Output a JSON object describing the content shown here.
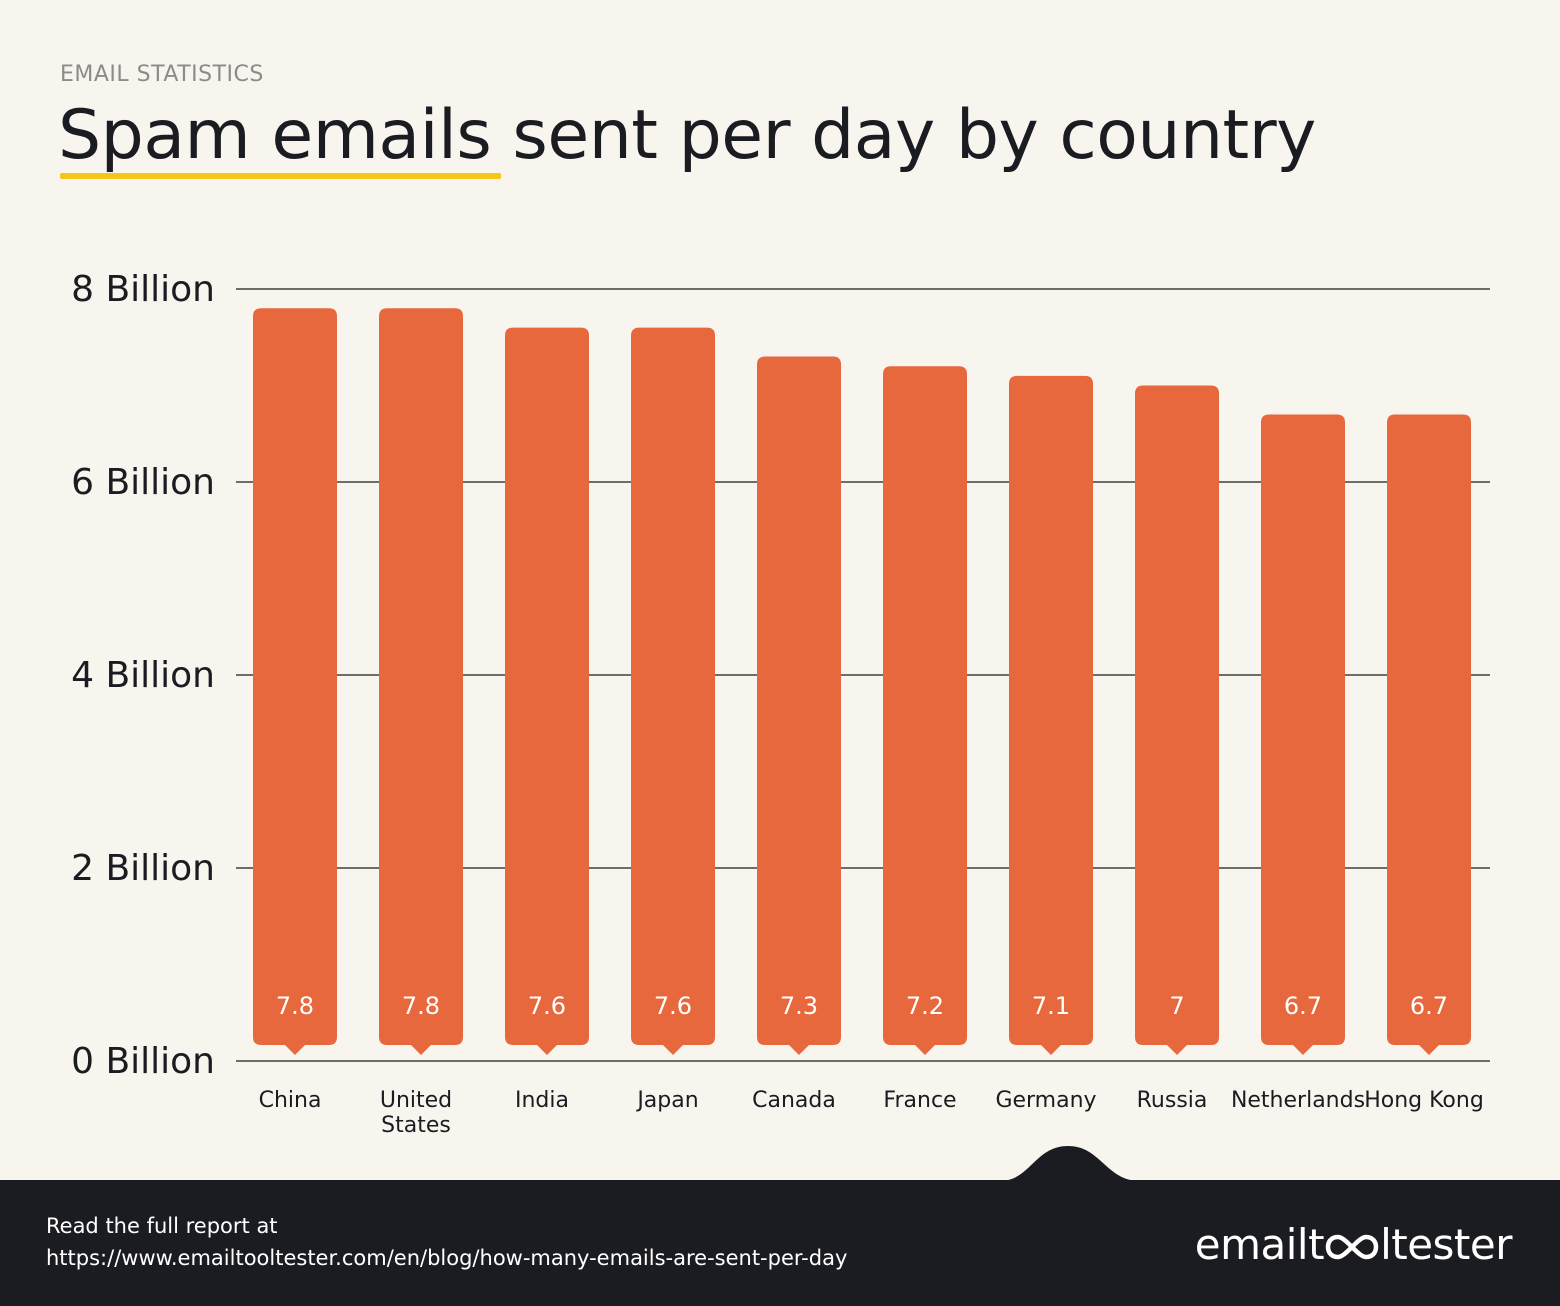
{
  "header": {
    "kicker": "EMAIL STATISTICS",
    "title_highlight": "Spam emails",
    "title_rest": " sent per day by country"
  },
  "colors": {
    "background": "#f8f5ef",
    "bar": "#e8683d",
    "highlight": "#f5c518",
    "footer": "#1b1c21"
  },
  "chart_data": {
    "type": "bar",
    "title": "Spam emails sent per day by country",
    "xlabel": "",
    "ylabel": "",
    "ylim": [
      0,
      8
    ],
    "yticks": [
      {
        "value": 0,
        "label": "0 Billion"
      },
      {
        "value": 2,
        "label": "2 Billion"
      },
      {
        "value": 4,
        "label": "4 Billion"
      },
      {
        "value": 6,
        "label": "6 Billion"
      },
      {
        "value": 8,
        "label": "8 Billion"
      }
    ],
    "categories": [
      "China",
      "United States",
      "India",
      "Japan",
      "Canada",
      "France",
      "Germany",
      "Russia",
      "Netherlands",
      "Hong Kong"
    ],
    "category_lines": [
      [
        "China"
      ],
      [
        "United",
        "States"
      ],
      [
        "India"
      ],
      [
        "Japan"
      ],
      [
        "Canada"
      ],
      [
        "France"
      ],
      [
        "Germany"
      ],
      [
        "Russia"
      ],
      [
        "Netherlands"
      ],
      [
        "Hong Kong"
      ]
    ],
    "values": [
      7.8,
      7.8,
      7.6,
      7.6,
      7.3,
      7.2,
      7.1,
      7.0,
      6.7,
      6.7
    ],
    "value_labels": [
      "7.8",
      "7.8",
      "7.6",
      "7.6",
      "7.3",
      "7.2",
      "7.1",
      "7",
      "6.7",
      "6.7"
    ],
    "grid": true
  },
  "footer": {
    "lead": "Read the full report at",
    "url": "https://www.emailtooltester.com/en/blog/how-many-emails-are-sent-per-day",
    "logo_before": "emailt",
    "logo_after": "ltester",
    "logo_icon": "infinity-oo-icon"
  }
}
